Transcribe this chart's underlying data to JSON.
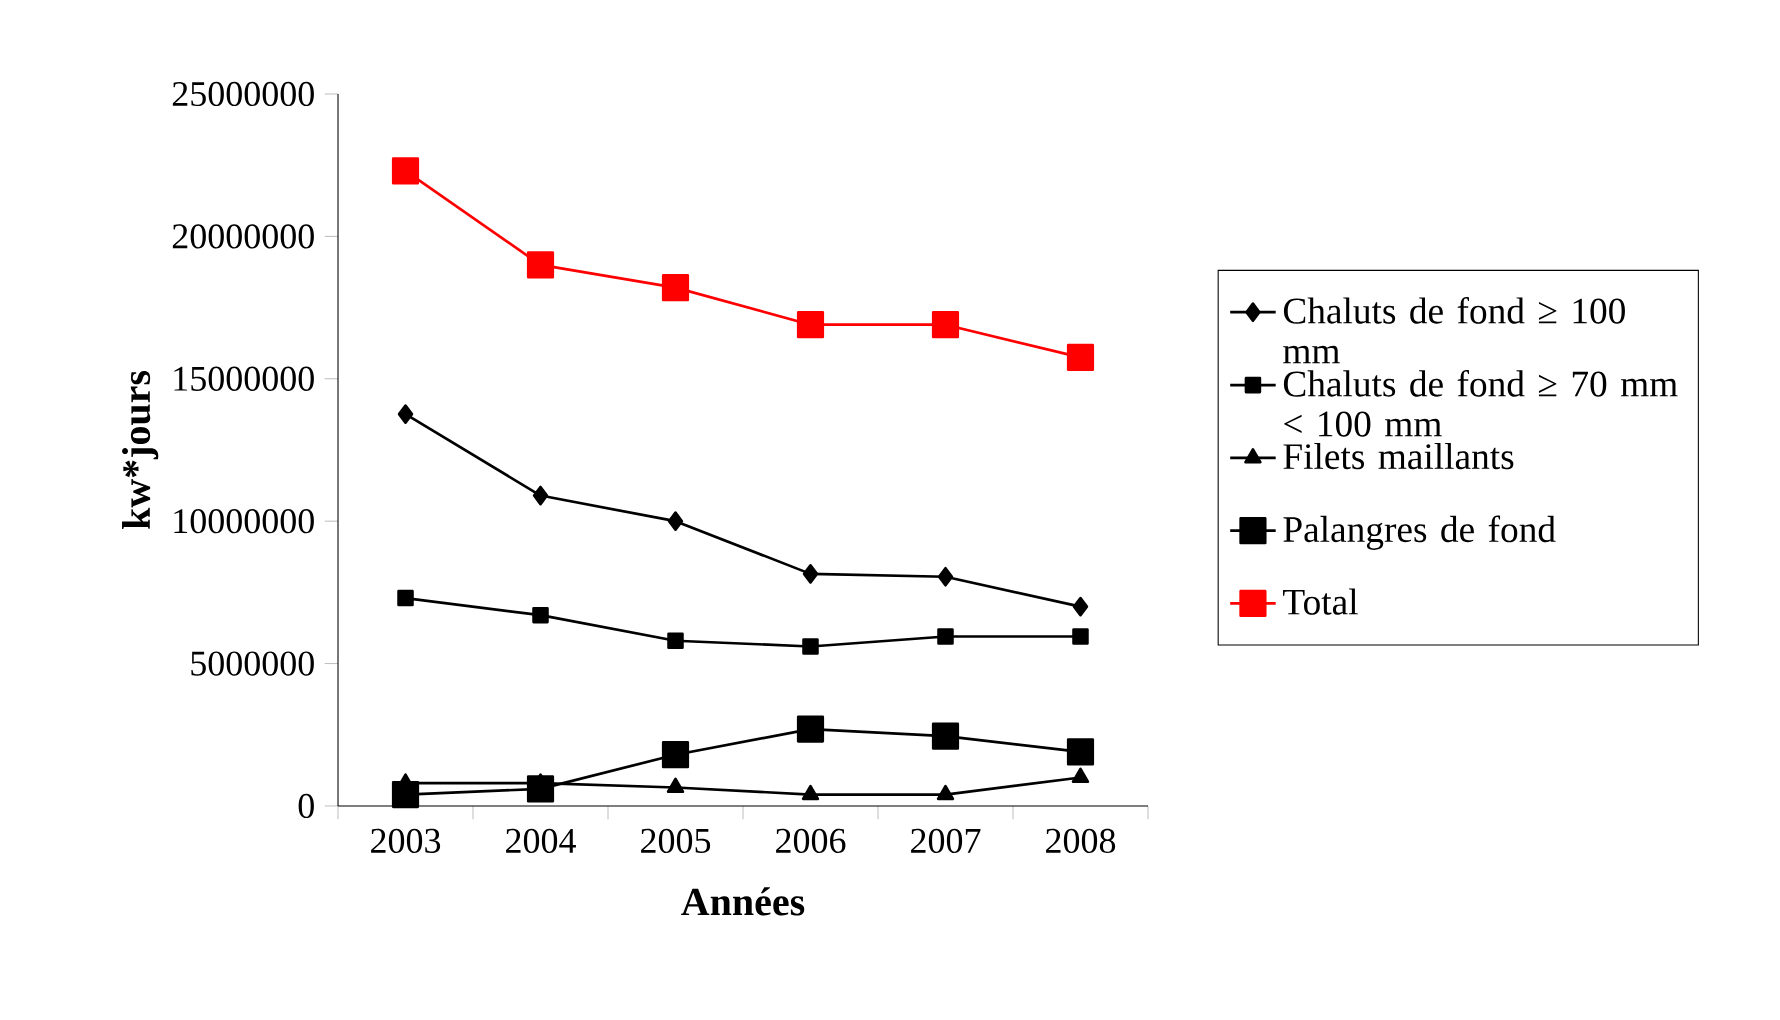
{
  "chart_data": {
    "type": "line",
    "xlabel": "Années",
    "ylabel": "kw*jours",
    "categories": [
      "2003",
      "2004",
      "2005",
      "2006",
      "2007",
      "2008"
    ],
    "ylim": [
      0,
      25000000
    ],
    "yticks": [
      0,
      5000000,
      10000000,
      15000000,
      20000000,
      25000000
    ],
    "legend": "right",
    "grid": false,
    "series": [
      {
        "name": "Chaluts de fond ≥ 100 mm",
        "color": "#000000",
        "marker": "diamond",
        "values": [
          13760000,
          10900000,
          10000000,
          8150000,
          8050000,
          7000000
        ]
      },
      {
        "name": "Chaluts de fond  ≥ 70 mm < 100 mm",
        "color": "#000000",
        "marker": "square",
        "values": [
          7300000,
          6700000,
          5800000,
          5600000,
          5950000,
          5950000
        ]
      },
      {
        "name": "Filets maillants",
        "color": "#000000",
        "marker": "triangle",
        "values": [
          800000,
          800000,
          650000,
          400000,
          400000,
          1000000
        ]
      },
      {
        "name": "Palangres de fond",
        "color": "#000000",
        "marker": "square",
        "values": [
          400000,
          600000,
          1800000,
          2700000,
          2450000,
          1900000
        ]
      },
      {
        "name": "Total",
        "color": "#ff0000",
        "marker": "square",
        "values": [
          22300000,
          19000000,
          18200000,
          16900000,
          16900000,
          15750000
        ]
      }
    ]
  }
}
